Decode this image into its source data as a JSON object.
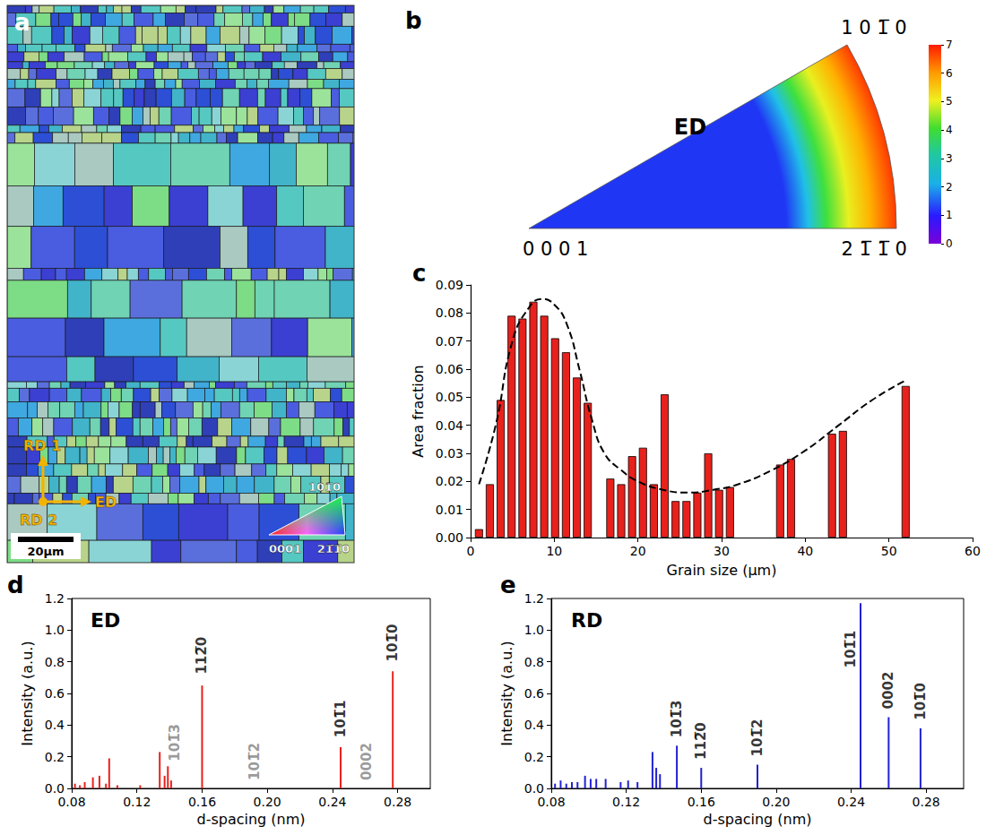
{
  "chart_data": [
    {
      "panel": "a",
      "type": "image",
      "directions": [
        "RD 1",
        "RD 2",
        "ED"
      ],
      "scale_bar": "20µm",
      "key_labels": [
        "101̅0",
        "0001",
        "21̅1̅0"
      ]
    },
    {
      "panel": "b",
      "type": "pole_figure",
      "title": "ED",
      "labels": [
        "1 0 1̅ 0",
        "0 0 0 1",
        "2 1̅ 1̅ 0"
      ],
      "colorbar": {
        "range": [
          0,
          7
        ],
        "ticks": [
          0,
          1,
          2,
          3,
          4,
          5,
          6,
          7
        ]
      }
    },
    {
      "panel": "c",
      "type": "bar",
      "color": "#e8211c",
      "x_label": "Grain size (µm)",
      "y_label": "Area fraction",
      "x": [
        1.0,
        2.3,
        3.6,
        4.9,
        6.2,
        7.5,
        8.8,
        10.1,
        11.4,
        12.7,
        14.0,
        16.7,
        18.0,
        19.3,
        20.6,
        21.9,
        23.2,
        24.5,
        25.8,
        27.1,
        28.4,
        29.7,
        31.0,
        37.0,
        38.3,
        43.2,
        44.5,
        52.0
      ],
      "values": [
        0.003,
        0.019,
        0.049,
        0.079,
        0.078,
        0.084,
        0.079,
        0.071,
        0.066,
        0.057,
        0.048,
        0.021,
        0.019,
        0.029,
        0.032,
        0.019,
        0.051,
        0.013,
        0.013,
        0.016,
        0.03,
        0.017,
        0.018,
        0.026,
        0.028,
        0.037,
        0.038,
        0.054
      ],
      "curve": {
        "type": "line",
        "line_style": "dashed",
        "color": "#000000",
        "x": [
          1,
          3,
          5,
          7,
          8.5,
          10,
          11.5,
          13,
          14.5,
          16,
          18,
          20,
          23,
          26,
          29,
          32,
          36,
          40,
          44,
          48,
          52
        ],
        "values": [
          0.019,
          0.04,
          0.07,
          0.082,
          0.085,
          0.083,
          0.076,
          0.06,
          0.042,
          0.03,
          0.024,
          0.02,
          0.017,
          0.016,
          0.017,
          0.019,
          0.024,
          0.031,
          0.04,
          0.049,
          0.056
        ]
      },
      "xlim": [
        0,
        60
      ],
      "xticks": [
        0,
        10,
        20,
        30,
        40,
        50,
        60
      ],
      "ylim": [
        0,
        0.09
      ],
      "yticks": [
        {
          "value": 0,
          "label": "0.00"
        },
        0.01,
        0.02,
        0.03,
        0.04,
        0.05,
        0.06,
        0.07,
        0.08,
        0.09
      ]
    },
    {
      "panel": "d",
      "type": "bar",
      "title": "ED",
      "color": "#e8211c",
      "x_label": "d-spacing (nm)",
      "y_label": "Intensity (a.u.)",
      "x": [
        0.082,
        0.085,
        0.088,
        0.093,
        0.097,
        0.101,
        0.103,
        0.108,
        0.122,
        0.134,
        0.137,
        0.139,
        0.141,
        0.16,
        0.245,
        0.277
      ],
      "values": [
        0.03,
        0.02,
        0.04,
        0.07,
        0.08,
        0.03,
        0.19,
        0.02,
        0.02,
        0.23,
        0.08,
        0.14,
        0.05,
        0.65,
        0.26,
        0.74
      ],
      "annotations": [
        {
          "text": "112̅0",
          "x": 0.16,
          "y": 0.71,
          "color": "#000000"
        },
        {
          "text": "101̅3",
          "x": 0.143,
          "y": 0.16,
          "color": "#808080"
        },
        {
          "text": "101̅2",
          "x": 0.192,
          "y": 0.04,
          "color": "#808080"
        },
        {
          "text": "101̅1",
          "x": 0.245,
          "y": 0.31,
          "color": "#000000"
        },
        {
          "text": "0002",
          "x": 0.261,
          "y": 0.04,
          "color": "#808080"
        },
        {
          "text": "101̅0",
          "x": 0.277,
          "y": 0.79,
          "color": "#000000"
        }
      ],
      "xlim": [
        0.08,
        0.3
      ],
      "xticks": [
        0.08,
        0.12,
        0.16,
        {
          "value": 0.2,
          "label": "0.20"
        },
        0.24,
        0.28
      ],
      "ylim": [
        0,
        1.2
      ],
      "yticks": [
        {
          "value": 0,
          "label": "0.0"
        },
        0.2,
        0.4,
        0.6,
        0.8,
        {
          "value": 1,
          "label": "1.0"
        },
        1.2
      ]
    },
    {
      "panel": "e",
      "type": "bar",
      "title": "RD",
      "color": "#2121d4",
      "x_label": "d-spacing (nm)",
      "y_label": "Intensity (a.u.)",
      "x": [
        0.082,
        0.085,
        0.088,
        0.091,
        0.094,
        0.098,
        0.101,
        0.104,
        0.109,
        0.117,
        0.121,
        0.126,
        0.134,
        0.136,
        0.138,
        0.147,
        0.16,
        0.19,
        0.245,
        0.26,
        0.277
      ],
      "values": [
        0.03,
        0.05,
        0.03,
        0.04,
        0.04,
        0.08,
        0.06,
        0.06,
        0.06,
        0.04,
        0.05,
        0.04,
        0.23,
        0.13,
        0.09,
        0.27,
        0.13,
        0.15,
        1.17,
        0.45,
        0.38
      ],
      "annotations": [
        {
          "text": "101̅3",
          "x": 0.147,
          "y": 0.31,
          "color": "#000000"
        },
        {
          "text": "112̅0",
          "x": 0.16,
          "y": 0.17,
          "color": "#000000"
        },
        {
          "text": "101̅2",
          "x": 0.19,
          "y": 0.19,
          "color": "#000000"
        },
        {
          "text": "101̅1",
          "x": 0.2395,
          "y": 0.75,
          "color": "#000000"
        },
        {
          "text": "0002",
          "x": 0.26,
          "y": 0.49,
          "color": "#000000"
        },
        {
          "text": "101̅0",
          "x": 0.277,
          "y": 0.42,
          "color": "#000000"
        }
      ],
      "xlim": [
        0.08,
        0.3
      ],
      "xticks": [
        0.08,
        0.12,
        0.16,
        {
          "value": 0.2,
          "label": "0.20"
        },
        0.24,
        0.28
      ],
      "ylim": [
        0,
        1.2
      ],
      "yticks": [
        {
          "value": 0,
          "label": "0.0"
        },
        0.2,
        0.4,
        0.6,
        0.8,
        {
          "value": 1,
          "label": "1.0"
        },
        1.2
      ]
    }
  ]
}
